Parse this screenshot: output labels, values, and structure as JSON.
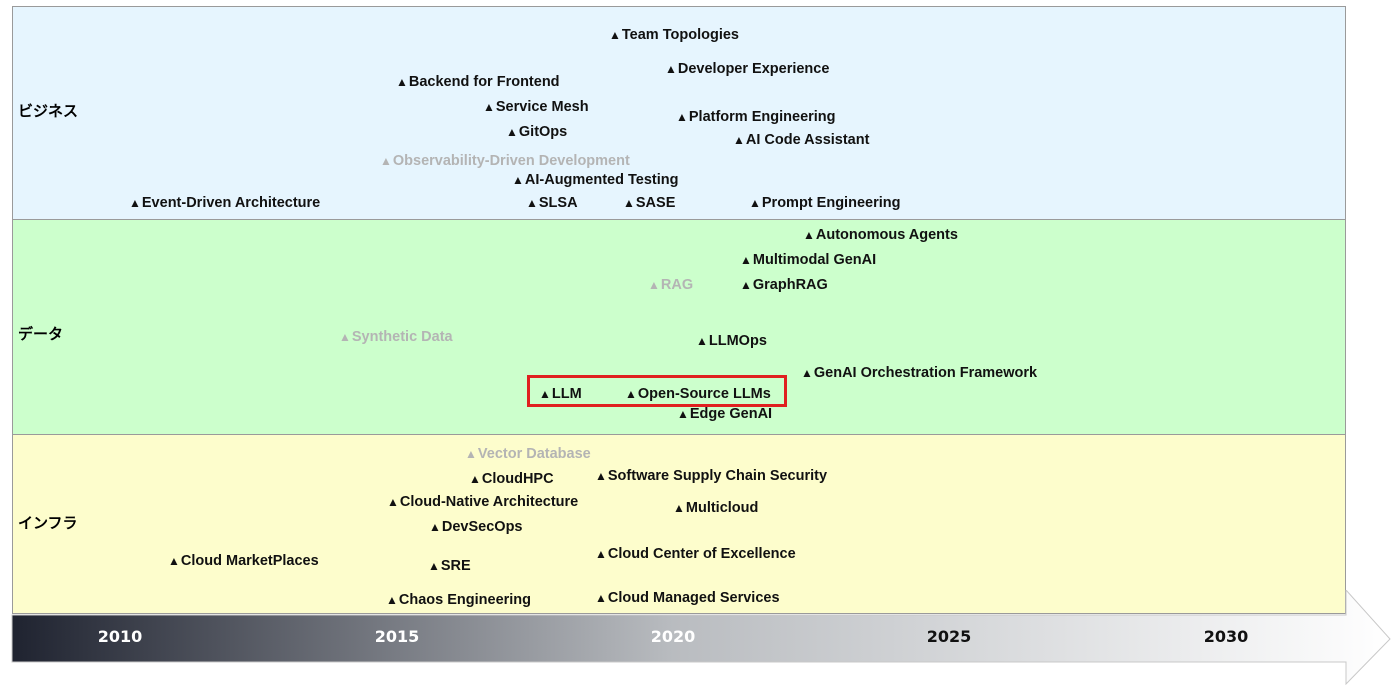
{
  "bands": {
    "business": "ビジネス",
    "data": "データ",
    "infra": "インフラ"
  },
  "triangle": "▲",
  "business_items": [
    {
      "label": "Team Topologies",
      "faded": false
    },
    {
      "label": "Developer Experience",
      "faded": false
    },
    {
      "label": "Backend for Frontend",
      "faded": false
    },
    {
      "label": "Service Mesh",
      "faded": false
    },
    {
      "label": "Platform Engineering",
      "faded": false
    },
    {
      "label": "GitOps",
      "faded": false
    },
    {
      "label": "AI Code Assistant",
      "faded": false
    },
    {
      "label": "Observability-Driven Development",
      "faded": true
    },
    {
      "label": "AI-Augmented Testing",
      "faded": false
    },
    {
      "label": "Event-Driven Architecture",
      "faded": false
    },
    {
      "label": "SLSA",
      "faded": false
    },
    {
      "label": "SASE",
      "faded": false
    },
    {
      "label": "Prompt Engineering",
      "faded": false
    }
  ],
  "data_items": [
    {
      "label": "Autonomous Agents",
      "faded": false
    },
    {
      "label": "Multimodal GenAI",
      "faded": false
    },
    {
      "label": "RAG",
      "faded": true
    },
    {
      "label": "GraphRAG",
      "faded": false
    },
    {
      "label": "Synthetic Data",
      "faded": true
    },
    {
      "label": "LLMOps",
      "faded": false
    },
    {
      "label": "GenAI Orchestration Framework",
      "faded": false
    },
    {
      "label": "LLM",
      "faded": false
    },
    {
      "label": "Open-Source LLMs",
      "faded": false
    },
    {
      "label": "Edge GenAI",
      "faded": false
    }
  ],
  "infra_items": [
    {
      "label": "Vector Database",
      "faded": true
    },
    {
      "label": "CloudHPC",
      "faded": false
    },
    {
      "label": "Software Supply Chain Security",
      "faded": false
    },
    {
      "label": "Cloud-Native Architecture",
      "faded": false
    },
    {
      "label": "Multicloud",
      "faded": false
    },
    {
      "label": "DevSecOps",
      "faded": false
    },
    {
      "label": "Cloud Center of Excellence",
      "faded": false
    },
    {
      "label": "Cloud MarketPlaces",
      "faded": false
    },
    {
      "label": "SRE",
      "faded": false
    },
    {
      "label": "Chaos Engineering",
      "faded": false
    },
    {
      "label": "Cloud Managed Services",
      "faded": false
    }
  ],
  "years": [
    "2010",
    "2015",
    "2020",
    "2025",
    "2030"
  ],
  "colors": {
    "business_bg": "#e6f5fe",
    "data_bg": "#ccffcc",
    "infra_bg": "#fdfdcc",
    "faded_text": "#b4b4b4",
    "highlight": "#e02020",
    "timeline_dark": "#1f2330",
    "timeline_light": "#ffffff"
  }
}
